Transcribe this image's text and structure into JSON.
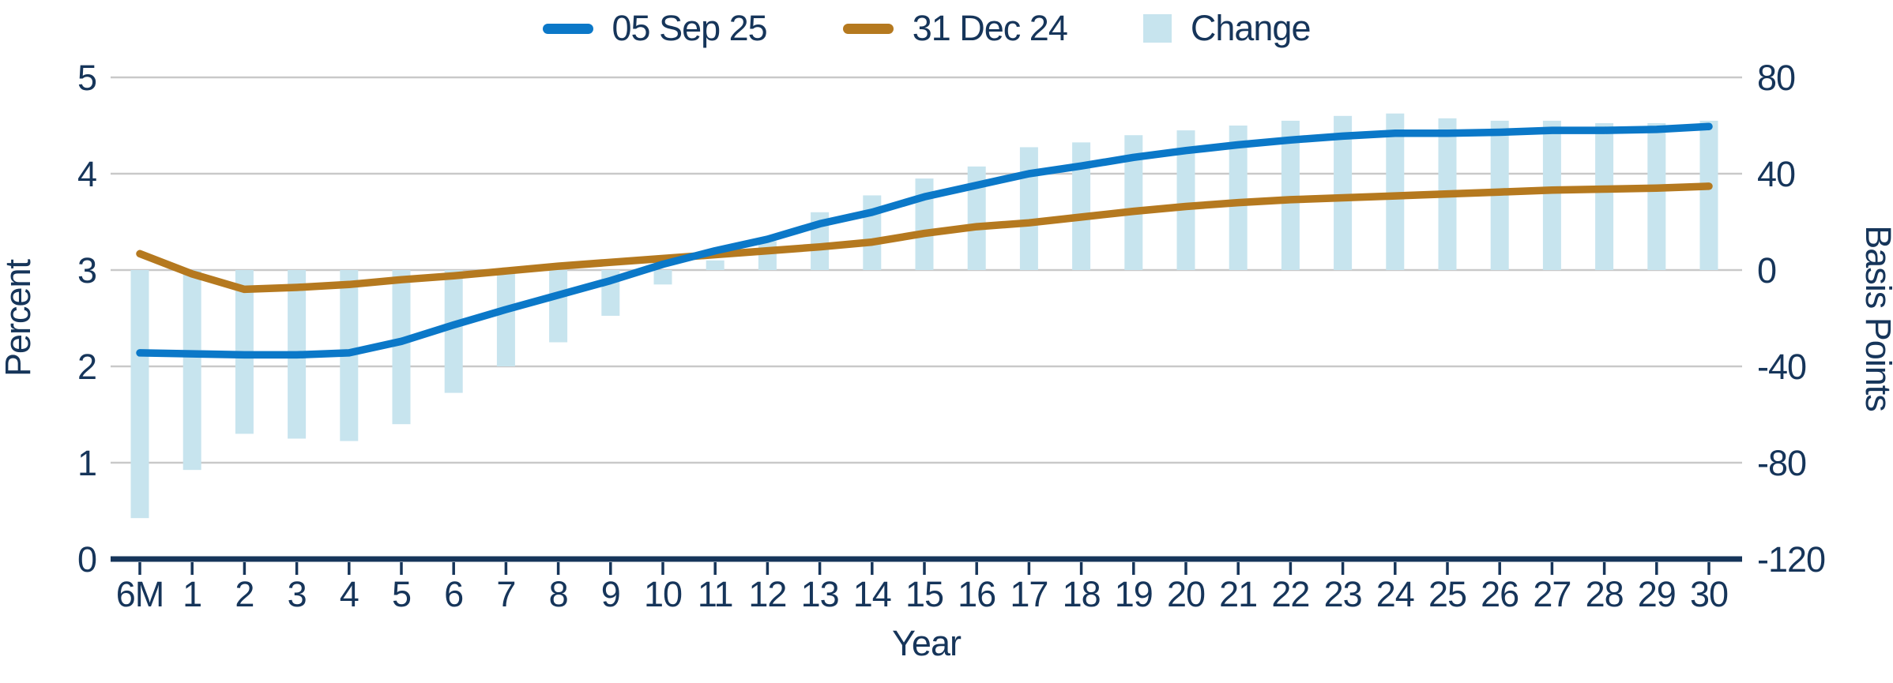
{
  "page": {
    "background": "#ffffff"
  },
  "colors": {
    "text_navy": "#16355a",
    "grid_gray": "#c9c9c9",
    "axis_navy": "#16355a",
    "line_blue": "#0b78c8",
    "line_brown": "#b5791f",
    "bar_lightblue": "#c7e4ee"
  },
  "legend": {
    "items": [
      {
        "label": "05 Sep 25",
        "swatch": "line",
        "color": "#0b78c8"
      },
      {
        "label": "31 Dec 24",
        "swatch": "line",
        "color": "#b5791f"
      },
      {
        "label": "Change",
        "swatch": "square",
        "color": "#c7e4ee"
      }
    ]
  },
  "chart_data": {
    "type": "line+bar",
    "title": "",
    "xlabel": "Year",
    "ylabel_left": "Percent",
    "ylabel_right": "Basis Points",
    "ylim_left": [
      0,
      5
    ],
    "ylim_right": [
      -120,
      80
    ],
    "yticks_left": [
      0,
      1,
      2,
      3,
      4,
      5
    ],
    "yticks_right": [
      -120,
      -80,
      -40,
      0,
      40,
      80
    ],
    "grid": "horizontal",
    "legend_position": "top-center",
    "categories": [
      "6M",
      "1",
      "2",
      "3",
      "4",
      "5",
      "6",
      "7",
      "8",
      "9",
      "10",
      "11",
      "12",
      "13",
      "14",
      "15",
      "16",
      "17",
      "18",
      "19",
      "20",
      "21",
      "22",
      "23",
      "24",
      "25",
      "26",
      "27",
      "28",
      "29",
      "30"
    ],
    "series": [
      {
        "name": "05 Sep 25",
        "type": "line",
        "axis": "left",
        "unit": "percent",
        "color": "#0b78c8",
        "values": [
          2.14,
          2.13,
          2.12,
          2.12,
          2.14,
          2.26,
          2.43,
          2.59,
          2.74,
          2.89,
          3.06,
          3.2,
          3.32,
          3.48,
          3.6,
          3.76,
          3.88,
          4.0,
          4.08,
          4.17,
          4.24,
          4.3,
          4.35,
          4.39,
          4.42,
          4.42,
          4.43,
          4.45,
          4.45,
          4.46,
          4.49
        ]
      },
      {
        "name": "31 Dec 24",
        "type": "line",
        "axis": "left",
        "unit": "percent",
        "color": "#b5791f",
        "values": [
          3.17,
          2.96,
          2.8,
          2.82,
          2.85,
          2.9,
          2.94,
          2.99,
          3.04,
          3.08,
          3.12,
          3.16,
          3.2,
          3.24,
          3.29,
          3.38,
          3.45,
          3.49,
          3.55,
          3.61,
          3.66,
          3.7,
          3.73,
          3.75,
          3.77,
          3.79,
          3.81,
          3.83,
          3.84,
          3.85,
          3.87
        ]
      },
      {
        "name": "Change",
        "type": "bar",
        "axis": "right",
        "unit": "basis_points",
        "color": "#c7e4ee",
        "values": [
          -103,
          -83,
          -68,
          -70,
          -71,
          -64,
          -51,
          -40,
          -30,
          -19,
          -6,
          4,
          12,
          24,
          31,
          38,
          43,
          51,
          53,
          56,
          58,
          60,
          62,
          64,
          65,
          63,
          62,
          62,
          61,
          61,
          62
        ]
      }
    ]
  }
}
